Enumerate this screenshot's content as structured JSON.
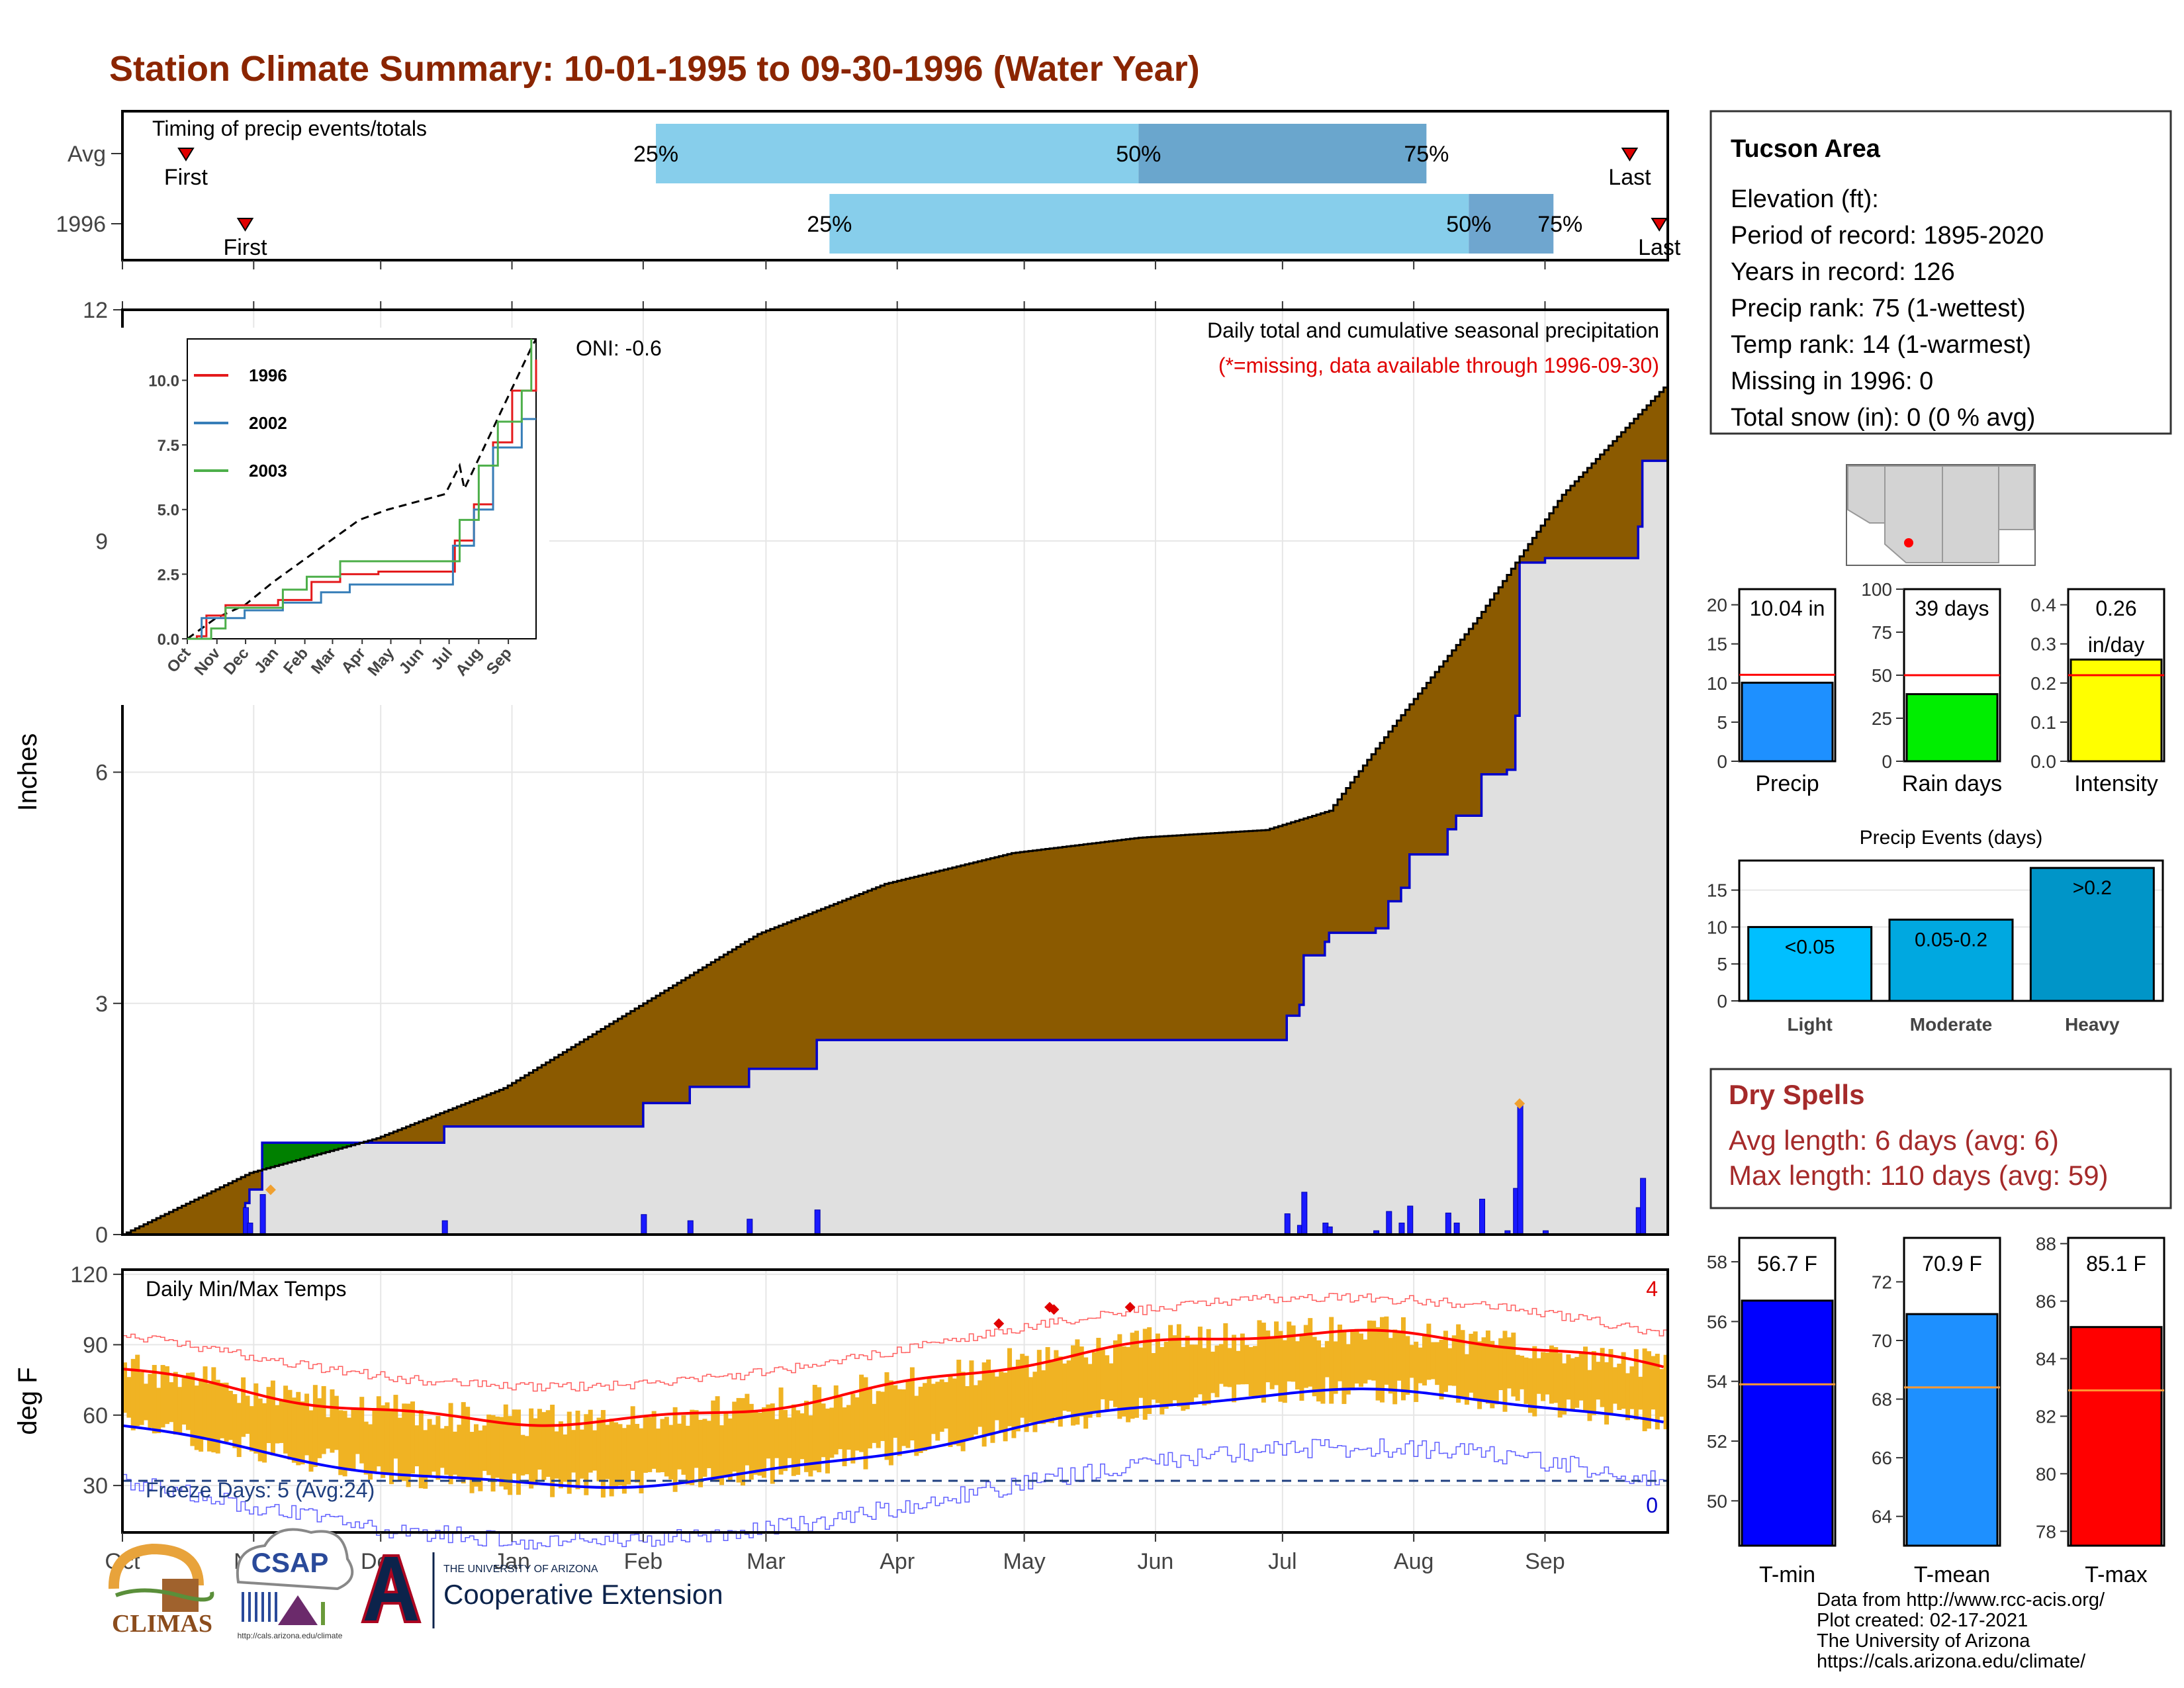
{
  "title": "Station Climate Summary: 10-01-1995 to 09-30-1996 (Water Year)",
  "timing": {
    "label": "Timing of precip events/totals",
    "rows": [
      {
        "name": "Avg",
        "first_day": 15,
        "p25_day": 126,
        "p50_day": 240,
        "p75_day": 308,
        "last_day": 356,
        "p25_label": "25%",
        "p50_label": "50%",
        "p75_label": "75%",
        "first_label": "First",
        "last_label": "Last"
      },
      {
        "name": "1996",
        "first_day": 29,
        "p25_day": 167,
        "p50_day": 318,
        "p75_day": 338,
        "last_day": 363,
        "p25_label": "25%",
        "p50_label": "50%",
        "p75_label": "75%",
        "first_label": "First",
        "last_label": "Last"
      }
    ]
  },
  "precip_panel": {
    "ylabel": "Inches",
    "yticks": [
      0,
      3,
      6,
      9,
      12
    ],
    "ylim": [
      0,
      12
    ],
    "oni": "ONI: -0.6",
    "desc1": "Daily total and cumulative seasonal precipitation",
    "desc2": "(*=missing, data available through 1996-09-30)",
    "avg_cum_end": 11.05,
    "obs_cum_end": 10.04,
    "daily_events": [
      {
        "day": 29,
        "in": 0.35
      },
      {
        "day": 30,
        "in": 0.15
      },
      {
        "day": 33,
        "in": 0.52
      },
      {
        "day": 76,
        "in": 0.18
      },
      {
        "day": 123,
        "in": 0.26
      },
      {
        "day": 134,
        "in": 0.18
      },
      {
        "day": 148,
        "in": 0.2
      },
      {
        "day": 164,
        "in": 0.32
      },
      {
        "day": 275,
        "in": 0.27
      },
      {
        "day": 278,
        "in": 0.12
      },
      {
        "day": 279,
        "in": 0.55
      },
      {
        "day": 284,
        "in": 0.15
      },
      {
        "day": 285,
        "in": 0.1
      },
      {
        "day": 296,
        "in": 0.05
      },
      {
        "day": 299,
        "in": 0.3
      },
      {
        "day": 302,
        "in": 0.15
      },
      {
        "day": 304,
        "in": 0.37
      },
      {
        "day": 313,
        "in": 0.28
      },
      {
        "day": 315,
        "in": 0.15
      },
      {
        "day": 321,
        "in": 0.46
      },
      {
        "day": 327,
        "in": 0.05
      },
      {
        "day": 329,
        "in": 0.6
      },
      {
        "day": 330,
        "in": 1.7
      },
      {
        "day": 336,
        "in": 0.05
      },
      {
        "day": 358,
        "in": 0.35
      },
      {
        "day": 359,
        "in": 0.73
      }
    ]
  },
  "inset": {
    "yticks": [
      "0.0",
      "2.5",
      "5.0",
      "7.5",
      "10.0"
    ],
    "months": [
      "Oct",
      "Nov",
      "Dec",
      "Jan",
      "Feb",
      "Mar",
      "Apr",
      "May",
      "Jun",
      "Jul",
      "Aug",
      "Sep"
    ],
    "legend": [
      {
        "name": "1996",
        "color": "#e41a1c"
      },
      {
        "name": "2002",
        "color": "#377eb8"
      },
      {
        "name": "2003",
        "color": "#4daf4a"
      }
    ]
  },
  "temp_panel": {
    "ylabel": "deg F",
    "title": "Daily Min/Max Temps",
    "yticks": [
      30,
      60,
      90,
      120
    ],
    "ylim": [
      10,
      122
    ],
    "freeze_label": "Freeze Days: 5 (Avg:24)",
    "record_high_count": "4",
    "record_low_count": "0"
  },
  "months": [
    "Oct",
    "Nov",
    "Dec",
    "Jan",
    "Feb",
    "Mar",
    "Apr",
    "May",
    "Jun",
    "Jul",
    "Aug",
    "Sep"
  ],
  "station": {
    "name": "Tucson Area",
    "lines": [
      "Elevation (ft):",
      "Period of record: 1895-2020",
      "Years in record: 126",
      "Precip rank: 75 (1-wettest)",
      "Temp rank: 14 (1-warmest)",
      "Missing in 1996: 0",
      "Total snow (in): 0 (0 % avg)"
    ]
  },
  "mini_bars": [
    {
      "label": "Precip",
      "value": 10.04,
      "value_label": "10.04 in",
      "value_label2": "",
      "avg": 11.05,
      "ymax": 22,
      "yticks": [
        "0",
        "5",
        "10",
        "15",
        "20"
      ],
      "yvals": [
        0,
        5,
        10,
        15,
        20
      ],
      "color": "#1e90ff"
    },
    {
      "label": "Rain days",
      "value": 39,
      "value_label": "39 days",
      "value_label2": "",
      "avg": 50,
      "ymax": 100,
      "yticks": [
        "0",
        "25",
        "50",
        "75",
        "100"
      ],
      "yvals": [
        0,
        25,
        50,
        75,
        100
      ],
      "color": "#00ee00"
    },
    {
      "label": "Intensity",
      "value": 0.26,
      "value_label": "0.26",
      "value_label2": "in/day",
      "avg": 0.22,
      "ymax": 0.44,
      "yticks": [
        "0.0",
        "0.1",
        "0.2",
        "0.3",
        "0.4"
      ],
      "yvals": [
        0,
        0.1,
        0.2,
        0.3,
        0.4
      ],
      "color": "#ffff00"
    }
  ],
  "events": {
    "title": "Precip Events (days)",
    "categories": [
      "Light",
      "Moderate",
      "Heavy"
    ],
    "values": [
      10,
      11,
      18
    ],
    "labels": [
      "<0.05",
      "0.05-0.2",
      ">0.2"
    ],
    "colors": [
      "#00bfff",
      "#00a8e0",
      "#0095c8"
    ],
    "yticks": [
      0,
      5,
      10,
      15
    ],
    "ymax": 19
  },
  "dry": {
    "title": "Dry Spells",
    "avg": "Avg length: 6 days (avg: 6)",
    "max": "Max length: 110 days (avg: 59)"
  },
  "temp_bars": [
    {
      "label": "T-min",
      "value": 56.7,
      "value_label": "56.7 F",
      "avg": 53.9,
      "ymin": 48.5,
      "ymax": 58.8,
      "yvals": [
        50,
        52,
        54,
        56,
        58
      ],
      "color": "#0000ff"
    },
    {
      "label": "T-mean",
      "value": 70.9,
      "value_label": "70.9 F",
      "avg": 68.4,
      "ymin": 63.0,
      "ymax": 73.5,
      "yvals": [
        64,
        66,
        68,
        70,
        72
      ],
      "color": "#1e90ff"
    },
    {
      "label": "T-max",
      "value": 85.1,
      "value_label": "85.1 F",
      "avg": 82.9,
      "ymin": 77.5,
      "ymax": 88.2,
      "yvals": [
        78,
        80,
        82,
        84,
        86,
        88
      ],
      "color": "#ff0000"
    }
  ],
  "logos": {
    "climas": "CLIMAS",
    "csap": "CSAP",
    "csap_url": "http://cals.arizona.edu/climate",
    "ua_small": "THE UNIVERSITY OF ARIZONA",
    "ua_big": "Cooperative Extension"
  },
  "credits": [
    "Data from http://www.rcc-acis.org/",
    "Plot created: 02-17-2021",
    "The University of Arizona",
    "https://cals.arizona.edu/climate/"
  ]
}
